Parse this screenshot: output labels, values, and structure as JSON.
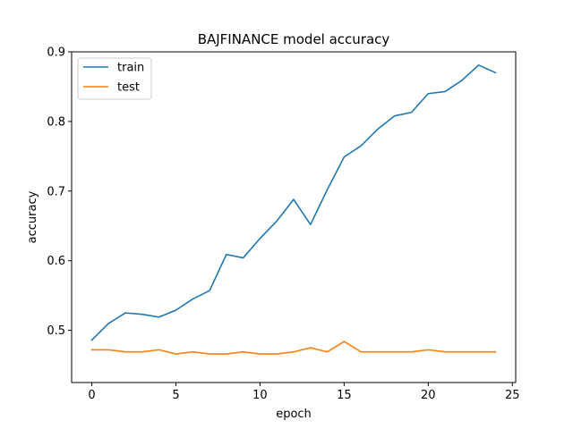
{
  "chart_data": {
    "type": "line",
    "title": "BAJFINANCE model accuracy",
    "xlabel": "epoch",
    "ylabel": "accuracy",
    "xlim": [
      -1.2,
      25.2
    ],
    "ylim": [
      0.425,
      0.9
    ],
    "xticks": [
      0,
      5,
      10,
      15,
      20,
      25
    ],
    "yticks": [
      0.5,
      0.6,
      0.7,
      0.8,
      0.9
    ],
    "grid": false,
    "legend_position": "top-left",
    "x": [
      0,
      1,
      2,
      3,
      4,
      5,
      6,
      7,
      8,
      9,
      10,
      11,
      12,
      13,
      14,
      15,
      16,
      17,
      18,
      19,
      20,
      21,
      22,
      23,
      24
    ],
    "series": [
      {
        "name": "train",
        "color": "#1f77b4",
        "values": [
          0.486,
          0.51,
          0.525,
          0.523,
          0.519,
          0.529,
          0.545,
          0.557,
          0.609,
          0.604,
          0.632,
          0.657,
          0.688,
          0.652,
          0.702,
          0.749,
          0.765,
          0.789,
          0.808,
          0.813,
          0.84,
          0.843,
          0.859,
          0.881,
          0.87
        ]
      },
      {
        "name": "test",
        "color": "#ff7f0e",
        "values": [
          0.472,
          0.472,
          0.469,
          0.469,
          0.472,
          0.466,
          0.469,
          0.466,
          0.466,
          0.469,
          0.466,
          0.466,
          0.469,
          0.475,
          0.469,
          0.484,
          0.469,
          0.469,
          0.469,
          0.469,
          0.472,
          0.469,
          0.469,
          0.469,
          0.469
        ]
      }
    ]
  }
}
